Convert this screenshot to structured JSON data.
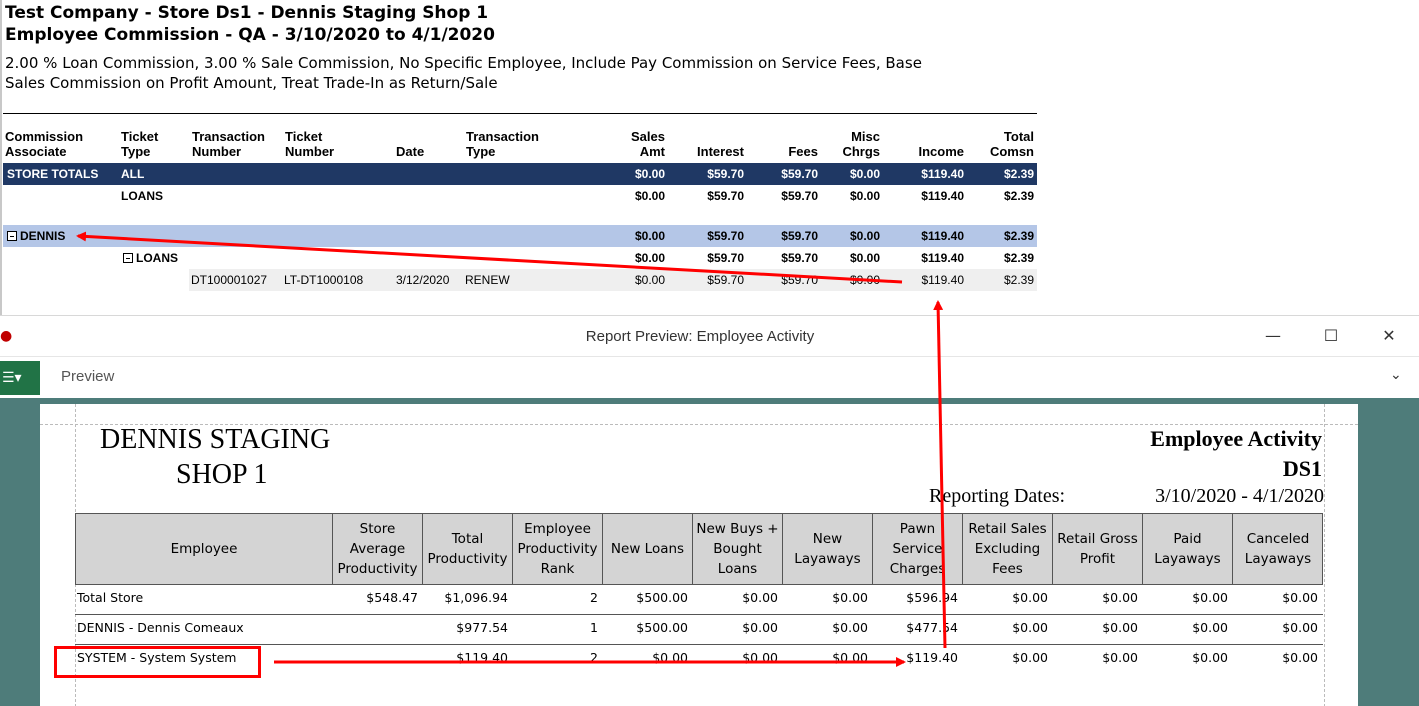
{
  "top_report": {
    "title_line1": "Test Company - Store Ds1 - Dennis Staging Shop 1",
    "title_line2": "Employee Commission - QA - 3/10/2020 to 4/1/2020",
    "parameters": "2.00 % Loan Commission, 3.00 % Sale Commission, No Specific Employee, Include Pay Commission on Service Fees, Base Sales Commission on Profit Amount, Treat Trade-In as Return/Sale",
    "headers": {
      "commission_associate": [
        "Commission",
        "Associate"
      ],
      "ticket_type": [
        "Ticket",
        "Type"
      ],
      "transaction_number": [
        "Transaction",
        "Number"
      ],
      "ticket_number": [
        "Ticket",
        "Number"
      ],
      "date": "Date",
      "transaction_type": [
        "Transaction",
        "Type"
      ],
      "sales_amt": [
        "Sales",
        "Amt"
      ],
      "interest": "Interest",
      "fees": "Fees",
      "misc_chrgs": [
        "Misc",
        "Chrgs"
      ],
      "income": "Income",
      "total_comsn": [
        "Total",
        "Comsn"
      ]
    },
    "store_totals": {
      "label": "STORE TOTALS",
      "ticket_type": "ALL",
      "sales_amt": "$0.00",
      "interest": "$59.70",
      "fees": "$59.70",
      "misc": "$0.00",
      "income": "$119.40",
      "total": "$2.39"
    },
    "store_loans": {
      "ticket_type": "LOANS",
      "sales_amt": "$0.00",
      "interest": "$59.70",
      "fees": "$59.70",
      "misc": "$0.00",
      "income": "$119.40",
      "total": "$2.39"
    },
    "dennis": {
      "label": "DENNIS",
      "sales_amt": "$0.00",
      "interest": "$59.70",
      "fees": "$59.70",
      "misc": "$0.00",
      "income": "$119.40",
      "total": "$2.39"
    },
    "dennis_loans": {
      "ticket_type": "LOANS",
      "sales_amt": "$0.00",
      "interest": "$59.70",
      "fees": "$59.70",
      "misc": "$0.00",
      "income": "$119.40",
      "total": "$2.39"
    },
    "detail": {
      "transaction_number": "DT100001027",
      "ticket_number": "LT-DT1000108",
      "date": "3/12/2020",
      "transaction_type": "RENEW",
      "sales_amt": "$0.00",
      "interest": "$59.70",
      "fees": "$59.70",
      "misc": "$0.00",
      "income": "$119.40",
      "total": "$2.39"
    }
  },
  "window": {
    "title": "Report Preview: Employee Activity",
    "tab_label": "Preview",
    "minimize_glyph": "—",
    "maximize_glyph": "☐",
    "close_glyph": "✕",
    "file_menu_glyph": "☰▾",
    "collapse_glyph": "⌄"
  },
  "activity_report": {
    "store_name_line1": "DENNIS STAGING",
    "store_name_line2": "SHOP 1",
    "report_name": "Employee Activity",
    "store_code": "DS1",
    "reporting_dates_label": "Reporting Dates:",
    "reporting_dates_value": "3/10/2020 - 4/1/2020",
    "columns": [
      [
        "Employee"
      ],
      [
        "Store",
        "Average",
        "Productivity"
      ],
      [
        "Total",
        "Productivity"
      ],
      [
        "Employee",
        "Productivity",
        "Rank"
      ],
      [
        "New Loans"
      ],
      [
        "New Buys +",
        "Bought",
        "Loans"
      ],
      [
        "New",
        "Layaways"
      ],
      [
        "Pawn",
        "Service",
        "Charges"
      ],
      [
        "Retail Sales",
        "Excluding",
        "Fees"
      ],
      [
        "Retail Gross",
        "Profit"
      ],
      [
        "Paid",
        "Layaways"
      ],
      [
        "Canceled",
        "Layaways"
      ]
    ],
    "rows": [
      {
        "employee": "Total Store",
        "store_avg": "$548.47",
        "total_prod": "$1,096.94",
        "rank": "2",
        "new_loans": "$500.00",
        "new_buys": "$0.00",
        "new_layaways": "$0.00",
        "pawn_service": "$596.94",
        "retail_sales": "$0.00",
        "retail_gross": "$0.00",
        "paid_layaways": "$0.00",
        "canceled_layaways": "$0.00"
      },
      {
        "employee": "DENNIS - Dennis Comeaux",
        "store_avg": "",
        "total_prod": "$977.54",
        "rank": "1",
        "new_loans": "$500.00",
        "new_buys": "$0.00",
        "new_layaways": "$0.00",
        "pawn_service": "$477.54",
        "retail_sales": "$0.00",
        "retail_gross": "$0.00",
        "paid_layaways": "$0.00",
        "canceled_layaways": "$0.00"
      },
      {
        "employee": "SYSTEM - System System",
        "store_avg": "",
        "total_prod": "$119.40",
        "rank": "2",
        "new_loans": "$0.00",
        "new_buys": "$0.00",
        "new_layaways": "$0.00",
        "pawn_service": "$119.40",
        "retail_sales": "$0.00",
        "retail_gross": "$0.00",
        "paid_layaways": "$0.00",
        "canceled_layaways": "$0.00"
      }
    ]
  },
  "colors": {
    "store_totals_bg": "#1f3864",
    "dennis_bg": "#b4c6e7",
    "annotation_red": "#ff0000",
    "canvas_bg": "#4e7c7a",
    "file_button": "#217346"
  }
}
